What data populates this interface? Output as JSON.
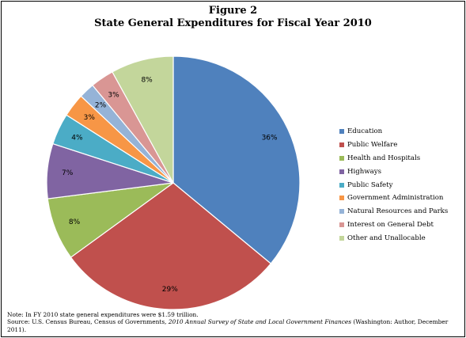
{
  "figure": {
    "number": "Figure 2",
    "title": "State General Expenditures for Fiscal Year 2010"
  },
  "chart_data": {
    "type": "pie",
    "title": "State General Expenditures for Fiscal Year 2010",
    "start": "12 o'clock, clockwise",
    "legend_position": "right",
    "categories": [
      "Education",
      "Public Welfare",
      "Health and Hospitals",
      "Highways",
      "Public Safety",
      "Government Administration",
      "Natural Resources and Parks",
      "Interest on General Debt",
      "Other and Unallocable"
    ],
    "values": [
      36,
      29,
      8,
      7,
      4,
      3,
      2,
      3,
      8
    ],
    "labels": [
      "36%",
      "29%",
      "8%",
      "7%",
      "4%",
      "3%",
      "2%",
      "3%",
      "8%"
    ],
    "colors": [
      "#4F81BD",
      "#C0504D",
      "#9BBB59",
      "#8064A2",
      "#4BACC6",
      "#F79646",
      "#95B3D7",
      "#D99694",
      "#C3D69B"
    ]
  },
  "note": {
    "line1": "Note: In FY 2010 state general expenditures were $1.59 trillion.",
    "source_prefix": "Source:  U.S. Census Bureau, Census of Governments, ",
    "source_title": "2010 Annual Survey of State and Local Government Finances",
    "source_suffix": "  (Washington: Author, December 2011)."
  }
}
